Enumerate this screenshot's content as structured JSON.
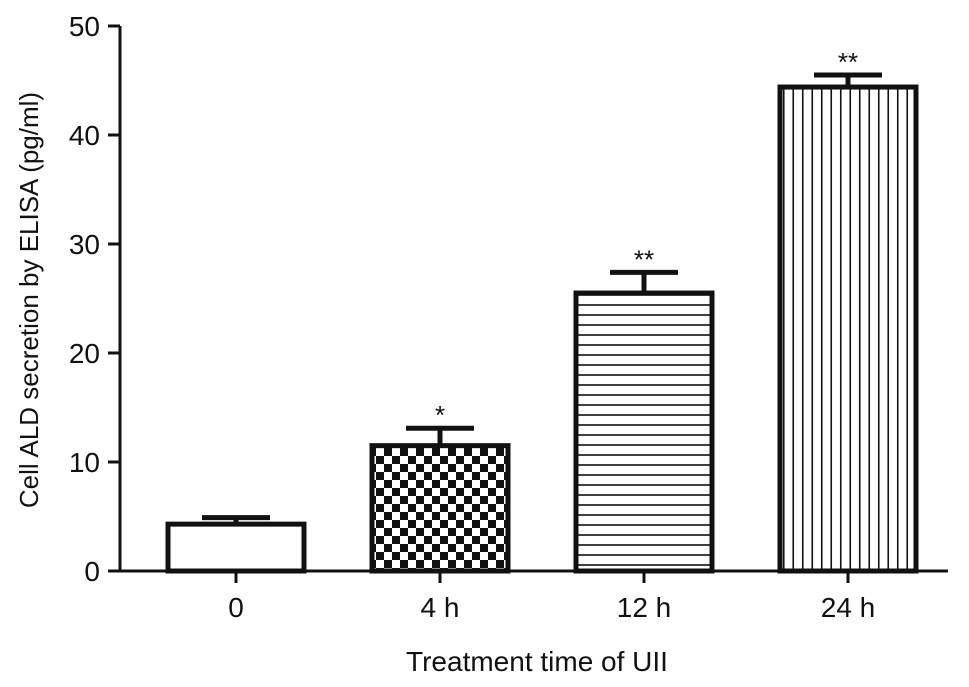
{
  "chart_data": {
    "type": "bar",
    "title": "",
    "xlabel": "Treatment time of UII",
    "ylabel": "Cell ALD secretion by ELISA (pg/ml)",
    "categories": [
      "0",
      "4 h",
      "12 h",
      "24 h"
    ],
    "values": [
      4.3,
      11.5,
      25.5,
      44.4
    ],
    "errors": [
      0.6,
      1.6,
      1.9,
      1.1
    ],
    "annotations": [
      "",
      "*",
      "**",
      "**"
    ],
    "patterns": [
      "solid",
      "checkerboard",
      "horizontal-lines",
      "vertical-lines"
    ],
    "ylim": [
      0,
      50
    ],
    "yticks": [
      0,
      10,
      20,
      30,
      40,
      50
    ],
    "grid": false,
    "legend": "none",
    "colors": {
      "bar_fill": "#ffffff",
      "pattern": "#111111",
      "outline": "#111111"
    }
  }
}
